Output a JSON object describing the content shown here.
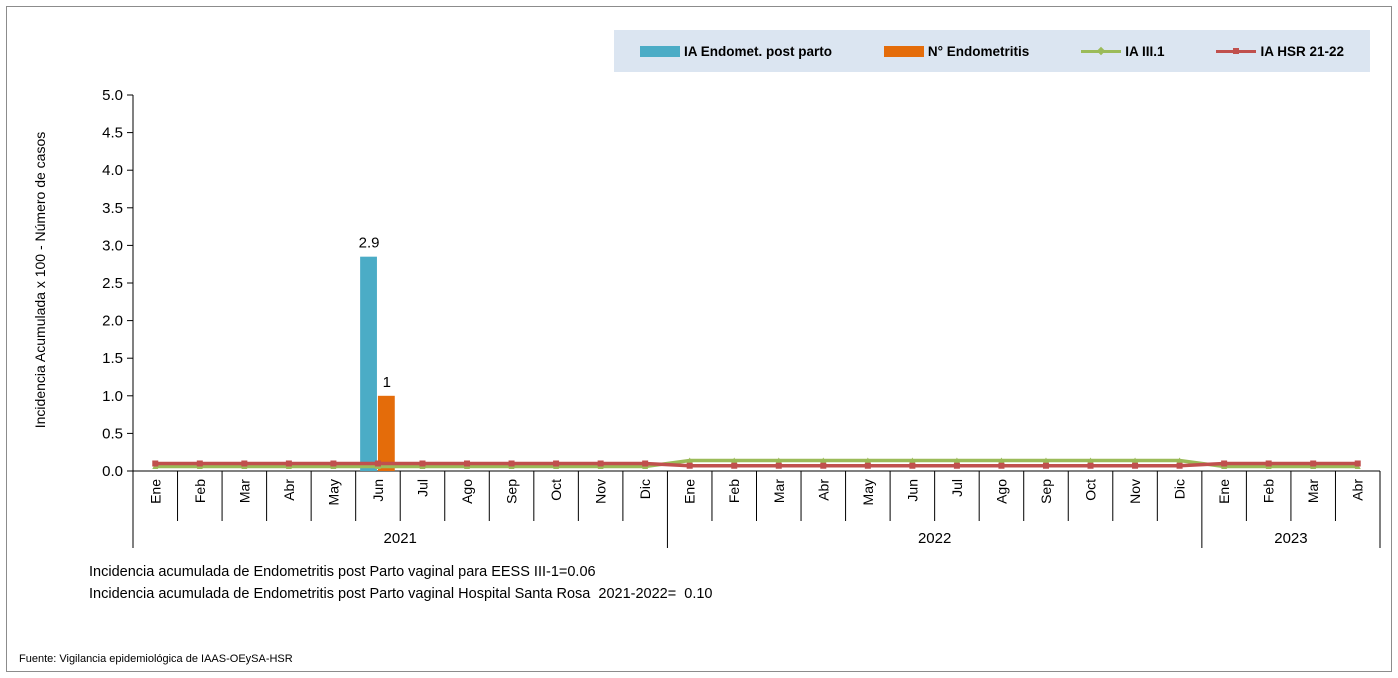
{
  "colors": {
    "bar_ia": "#4bacc6",
    "bar_count": "#e46c0a",
    "line_iii1": "#9bbb59",
    "line_hsr": "#c0504d",
    "legend_bg": "#dbe5f1"
  },
  "footnotes": {
    "line1": "Incidencia acumulada de Endometritis post Parto vaginal para EESS III-1=0.06",
    "line2": "Incidencia acumulada de Endometritis post Parto vaginal Hospital Santa Rosa  2021-2022=  0.10",
    "source": "Fuente: Vigilancia epidemiológica de IAAS-OEySA-HSR"
  },
  "chart_data": {
    "type": "bar",
    "ylabel": "Incidencia Acumulada x 100 - Número de casos",
    "ylim": [
      0,
      5
    ],
    "yticks": [
      "0.0",
      "0.5",
      "1.0",
      "1.5",
      "2.0",
      "2.5",
      "3.0",
      "3.5",
      "4.0",
      "4.5",
      "5.0"
    ],
    "categories": [
      "Ene",
      "Feb",
      "Mar",
      "Abr",
      "May",
      "Jun",
      "Jul",
      "Ago",
      "Sep",
      "Oct",
      "Nov",
      "Dic",
      "Ene",
      "Feb",
      "Mar",
      "Abr",
      "May",
      "Jun",
      "Jul",
      "Ago",
      "Sep",
      "Oct",
      "Nov",
      "Dic",
      "Ene",
      "Feb",
      "Mar",
      "Abr"
    ],
    "years": [
      {
        "label": "2021",
        "start": 0,
        "end": 11
      },
      {
        "label": "2022",
        "start": 12,
        "end": 23
      },
      {
        "label": "2023",
        "start": 24,
        "end": 27
      }
    ],
    "legend": [
      "IA Endomet. post parto",
      "N°  Endometritis",
      "IA  III.1",
      "IA HSR 21-22"
    ],
    "series": [
      {
        "name": "IA Endomet. post parto",
        "kind": "bar",
        "values": [
          0,
          0,
          0,
          0,
          0,
          2.85,
          0,
          0,
          0,
          0,
          0,
          0,
          0,
          0,
          0,
          0,
          0,
          0,
          0,
          0,
          0,
          0,
          0,
          0,
          0,
          0,
          0,
          0
        ],
        "labels": {
          "5": "2.9"
        }
      },
      {
        "name": "N°  Endometritis",
        "kind": "bar",
        "values": [
          0,
          0,
          0,
          0,
          0,
          1,
          0,
          0,
          0,
          0,
          0,
          0,
          0,
          0,
          0,
          0,
          0,
          0,
          0,
          0,
          0,
          0,
          0,
          0,
          0,
          0,
          0,
          0
        ],
        "labels": {
          "5": "1"
        }
      },
      {
        "name": "IA  III.1",
        "kind": "line",
        "values": [
          0.06,
          0.06,
          0.06,
          0.06,
          0.06,
          0.06,
          0.06,
          0.06,
          0.06,
          0.06,
          0.06,
          0.06,
          0.14,
          0.14,
          0.14,
          0.14,
          0.14,
          0.14,
          0.14,
          0.14,
          0.14,
          0.14,
          0.14,
          0.14,
          0.06,
          0.06,
          0.06,
          0.06
        ]
      },
      {
        "name": "IA HSR 21-22",
        "kind": "line",
        "values": [
          0.1,
          0.1,
          0.1,
          0.1,
          0.1,
          0.1,
          0.1,
          0.1,
          0.1,
          0.1,
          0.1,
          0.1,
          0.07,
          0.07,
          0.07,
          0.07,
          0.07,
          0.07,
          0.07,
          0.07,
          0.07,
          0.07,
          0.07,
          0.07,
          0.1,
          0.1,
          0.1,
          0.1
        ]
      }
    ]
  }
}
